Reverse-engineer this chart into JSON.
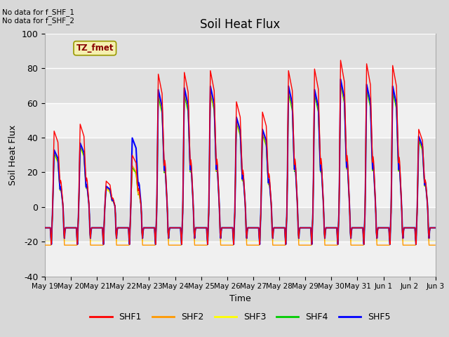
{
  "title": "Soil Heat Flux",
  "ylabel": "Soil Heat Flux",
  "xlabel": "Time",
  "ylim": [
    -40,
    100
  ],
  "yticks": [
    -40,
    -20,
    0,
    20,
    40,
    60,
    80,
    100
  ],
  "series_colors": {
    "SHF1": "#ff0000",
    "SHF2": "#ff9900",
    "SHF3": "#ffff00",
    "SHF4": "#00cc00",
    "SHF5": "#0000ff"
  },
  "no_data_text": "No data for f_SHF_1\nNo data for f_SHF_2",
  "tz_label": "TZ_fmet",
  "x_tick_labels": [
    "May 19",
    "May 20",
    "May 21",
    "May 22",
    "May 23",
    "May 24",
    "May 25",
    "May 26",
    "May 27",
    "May 28",
    "May 29",
    "May 30",
    "May 31",
    "Jun 1",
    "Jun 2",
    "Jun 3"
  ],
  "legend_entries": [
    "SHF1",
    "SHF2",
    "SHF3",
    "SHF4",
    "SHF5"
  ],
  "day_peak_shf1": [
    44,
    48,
    15,
    30,
    77,
    78,
    79,
    61,
    55,
    79,
    80,
    85,
    83,
    82,
    45
  ],
  "day_peak_shf2": [
    32,
    36,
    11,
    24,
    66,
    67,
    67,
    50,
    43,
    68,
    67,
    72,
    70,
    69,
    40
  ],
  "day_peak_shf3": [
    30,
    34,
    10,
    22,
    63,
    64,
    65,
    48,
    41,
    65,
    64,
    70,
    67,
    66,
    38
  ],
  "day_peak_shf4": [
    31,
    35,
    11,
    23,
    64,
    65,
    66,
    49,
    42,
    66,
    65,
    71,
    68,
    67,
    39
  ],
  "day_peak_shf5": [
    33,
    37,
    12,
    40,
    68,
    69,
    70,
    52,
    45,
    70,
    68,
    74,
    71,
    70,
    41
  ],
  "night_val": -13,
  "night_val_early": -22
}
